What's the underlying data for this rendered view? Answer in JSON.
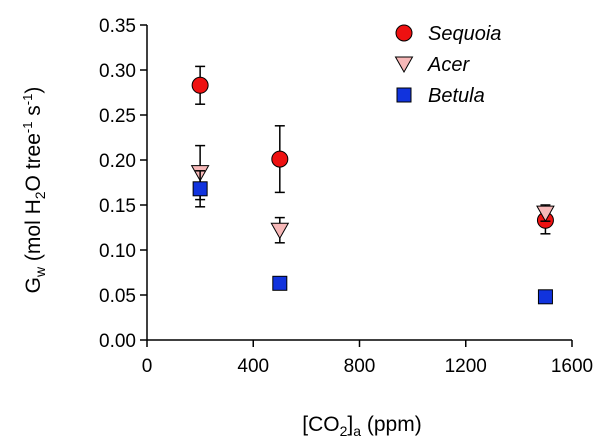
{
  "chart_data": {
    "type": "scatter",
    "title": "",
    "x_axis": {
      "label": {
        "prefix": "[CO",
        "sub1": "2",
        "mid": "]",
        "sub2": "a",
        "suffix": " (ppm)"
      },
      "min": 0,
      "max": 1600,
      "ticks": [
        "0",
        "400",
        "800",
        "1200",
        "1600"
      ],
      "tick_values": [
        0,
        400,
        800,
        1200,
        1600
      ]
    },
    "y_axis": {
      "label": {
        "g": "G",
        "gsub": "w",
        "pre": " (mol H",
        "h2": "2",
        "mid": "O tree",
        "sup1": "-1",
        "s": " s",
        "sup2": "-1",
        "close": ")"
      },
      "min": 0,
      "max": 0.35,
      "ticks": [
        "0.00",
        "0.05",
        "0.10",
        "0.15",
        "0.20",
        "0.25",
        "0.30",
        "0.35"
      ],
      "tick_values": [
        0,
        0.05,
        0.1,
        0.15,
        0.2,
        0.25,
        0.3,
        0.35
      ]
    },
    "legend_position": "top-right",
    "series": [
      {
        "name": "Sequoia",
        "marker": "circle",
        "color": "#ee1111",
        "points": [
          {
            "x": 200,
            "y": 0.283,
            "err": 0.021
          },
          {
            "x": 500,
            "y": 0.201,
            "err": 0.037
          },
          {
            "x": 1500,
            "y": 0.133,
            "err": 0.015
          }
        ]
      },
      {
        "name": "Acer",
        "marker": "triangle-down",
        "color": "#f7b8b8",
        "points": [
          {
            "x": 200,
            "y": 0.186,
            "err": 0.03
          },
          {
            "x": 500,
            "y": 0.122,
            "err": 0.014
          },
          {
            "x": 1500,
            "y": 0.141,
            "err": 0.009
          }
        ]
      },
      {
        "name": "Betula",
        "marker": "square",
        "color": "#1133dd",
        "points": [
          {
            "x": 200,
            "y": 0.168,
            "err": 0.02
          },
          {
            "x": 500,
            "y": 0.063,
            "err": 0.0
          },
          {
            "x": 1500,
            "y": 0.048,
            "err": 0.0
          }
        ]
      }
    ]
  }
}
